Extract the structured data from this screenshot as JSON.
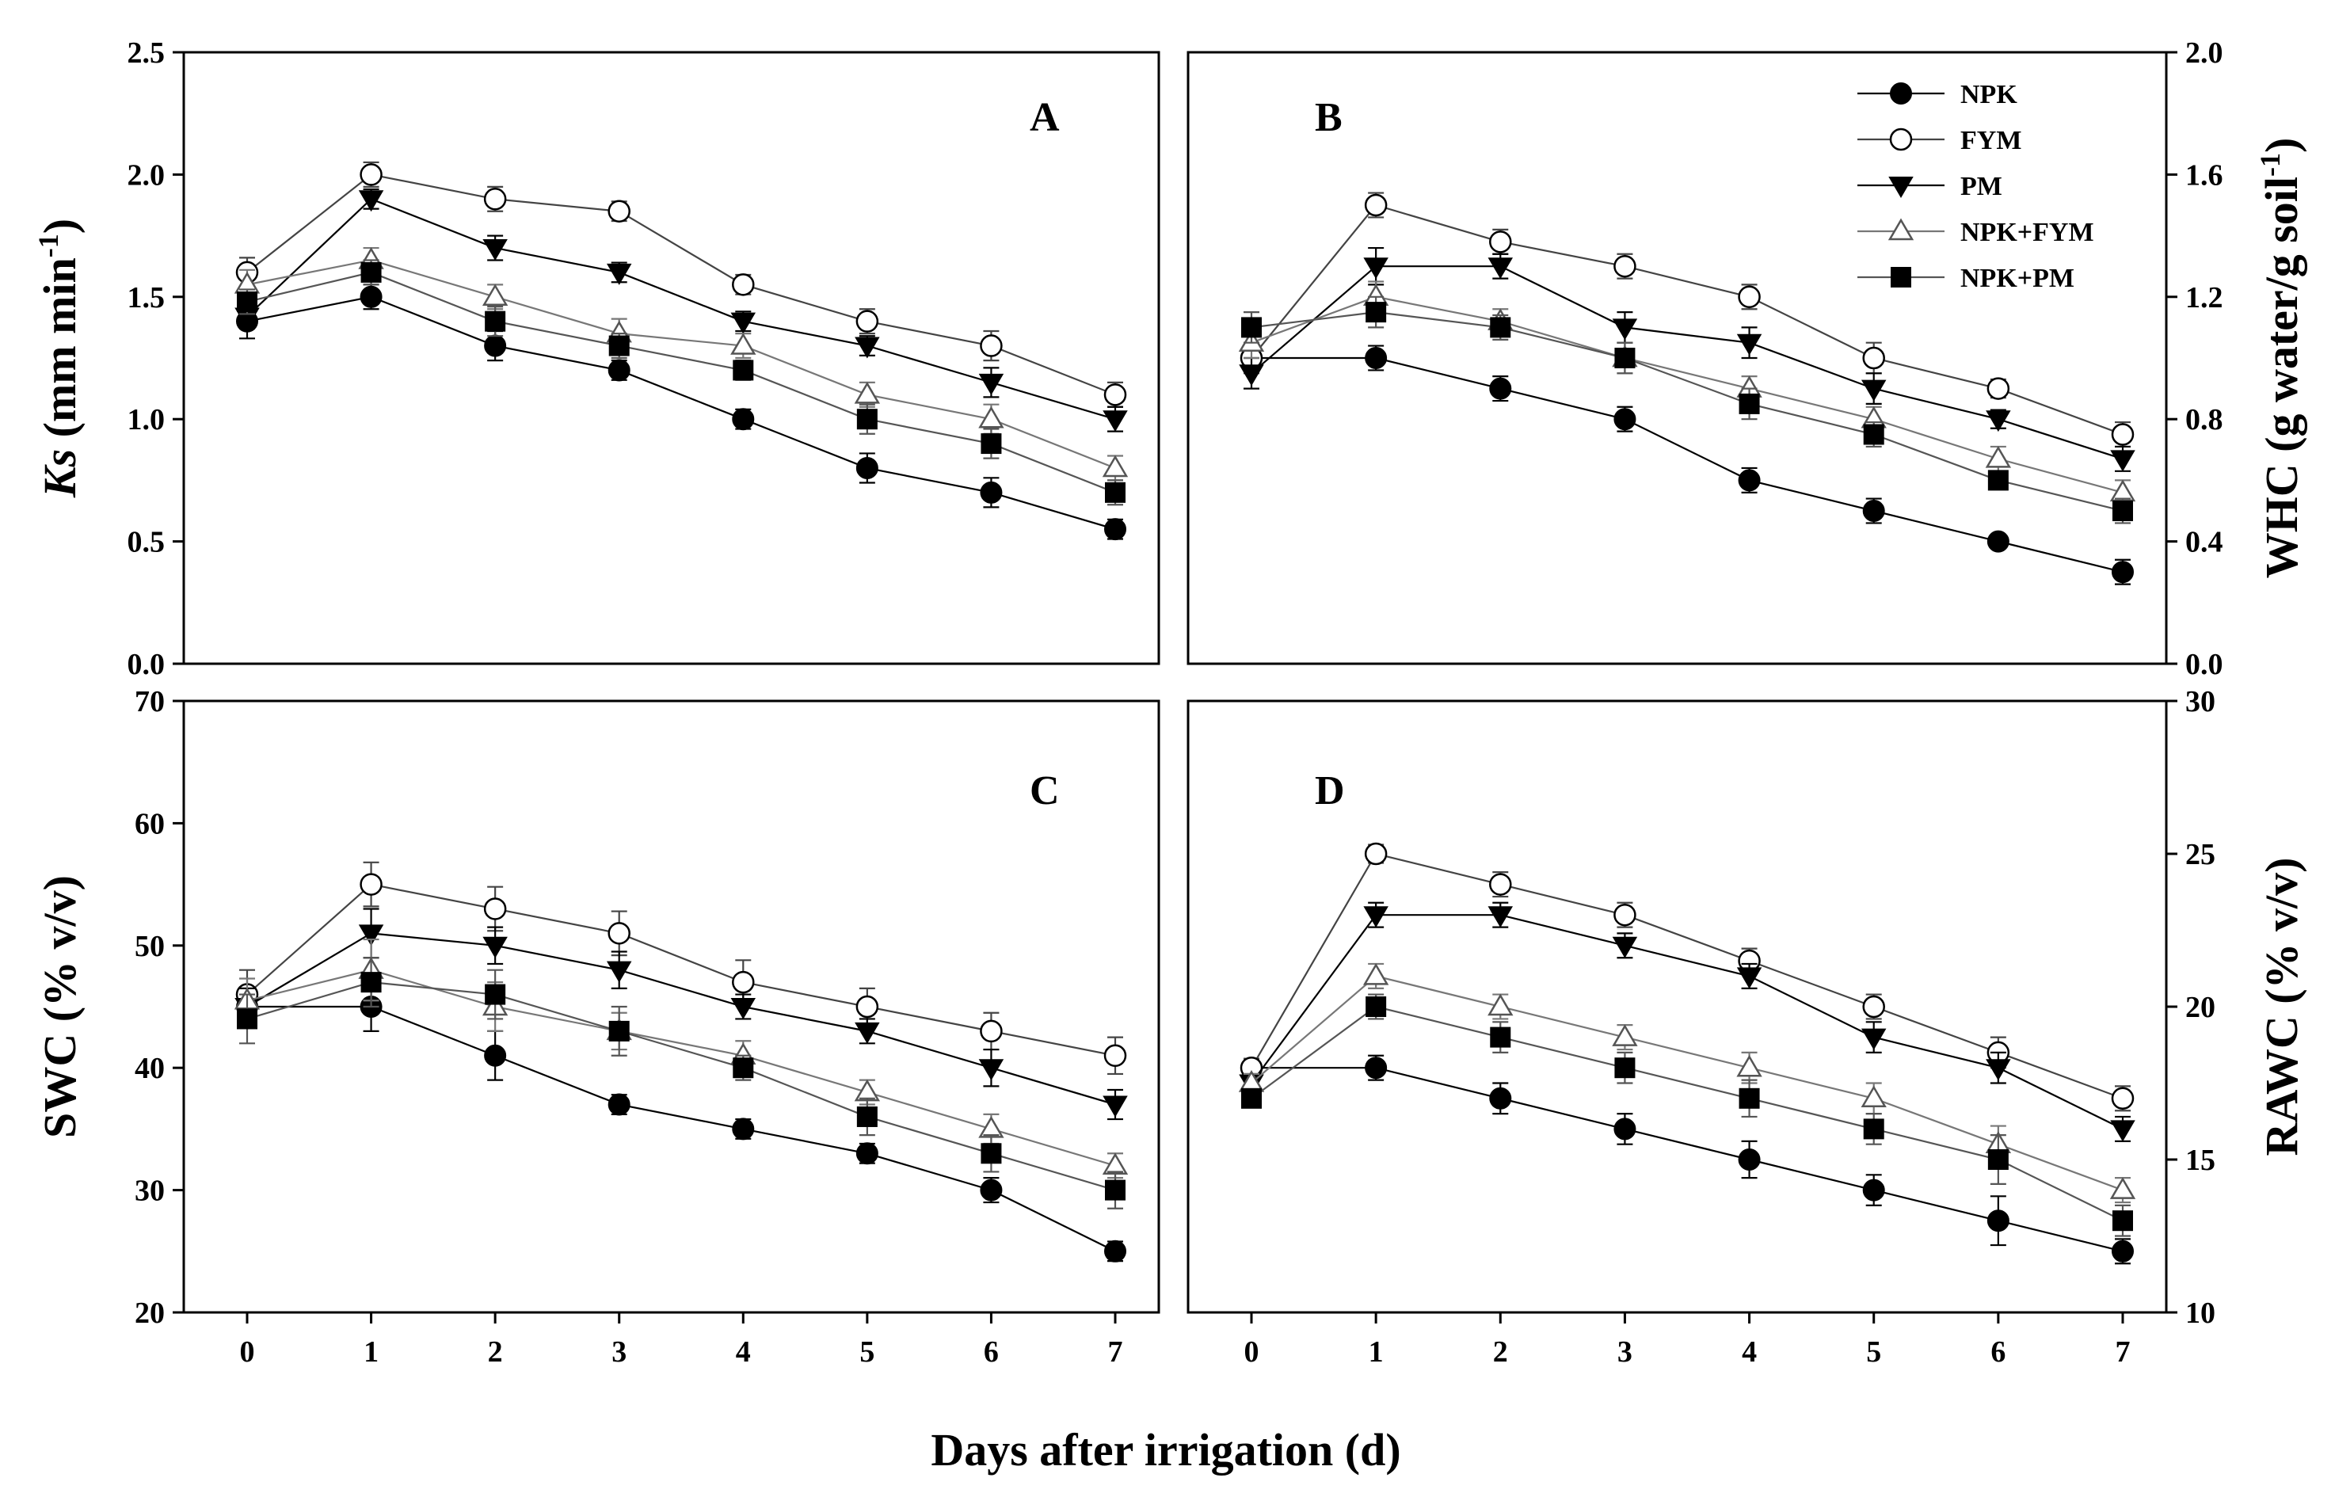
{
  "chart_data": {
    "type": "line",
    "xlabel": "Days after irrigation (d)",
    "x": [
      0,
      1,
      2,
      3,
      4,
      5,
      6,
      7
    ],
    "legend": [
      {
        "name": "NPK",
        "marker": "circle-filled"
      },
      {
        "name": "FYM",
        "marker": "circle-open"
      },
      {
        "name": "PM",
        "marker": "triangle-down-filled"
      },
      {
        "name": "NPK+FYM",
        "marker": "triangle-up-open"
      },
      {
        "name": "NPK+PM",
        "marker": "square-filled"
      }
    ],
    "colors": {
      "NPK": "#000000",
      "FYM": "#444444",
      "PM": "#000000",
      "NPK+FYM": "#777777",
      "NPK+PM": "#555555"
    },
    "panels": [
      {
        "id": "A",
        "letter": "A",
        "ylabel": "Ks (mm min-1)",
        "ylabel_main": "Ks",
        "ylabel_unit": " (mm min",
        "ylabel_sup": "-1",
        "ylabel_close": ")",
        "ylim": [
          0,
          2.5
        ],
        "yticks": [
          "0.0",
          "0.5",
          "1.0",
          "1.5",
          "2.0",
          "2.5"
        ],
        "series": [
          {
            "name": "NPK",
            "values": [
              1.4,
              1.5,
              1.3,
              1.2,
              1.0,
              0.8,
              0.7,
              0.55
            ],
            "errors": [
              0.07,
              0.05,
              0.06,
              0.04,
              0.04,
              0.06,
              0.06,
              0.04
            ]
          },
          {
            "name": "FYM",
            "values": [
              1.6,
              2.0,
              1.9,
              1.85,
              1.55,
              1.4,
              1.3,
              1.1
            ],
            "errors": [
              0.06,
              0.05,
              0.05,
              0.04,
              0.04,
              0.05,
              0.06,
              0.05
            ]
          },
          {
            "name": "PM",
            "values": [
              1.42,
              1.9,
              1.7,
              1.6,
              1.4,
              1.3,
              1.15,
              1.0
            ],
            "errors": [
              0.05,
              0.04,
              0.05,
              0.04,
              0.04,
              0.04,
              0.06,
              0.05
            ]
          },
          {
            "name": "NPK+FYM",
            "values": [
              1.55,
              1.65,
              1.5,
              1.35,
              1.3,
              1.1,
              1.0,
              0.8
            ],
            "errors": [
              0.06,
              0.05,
              0.05,
              0.06,
              0.05,
              0.05,
              0.06,
              0.05
            ]
          },
          {
            "name": "NPK+PM",
            "values": [
              1.48,
              1.6,
              1.4,
              1.3,
              1.2,
              1.0,
              0.9,
              0.7
            ],
            "errors": [
              0.05,
              0.05,
              0.06,
              0.05,
              0.04,
              0.06,
              0.06,
              0.05
            ]
          }
        ]
      },
      {
        "id": "B",
        "letter": "B",
        "ylabel": "WHC (g water/g soil-1)",
        "ylabel_main": "WHC (g water/g soil",
        "ylabel_sup": "-1",
        "ylabel_close": ")",
        "ylim": [
          0,
          2.0
        ],
        "yticks": [
          "0.0",
          "0.4",
          "0.8",
          "1.2",
          "1.6",
          "2.0"
        ],
        "series": [
          {
            "name": "NPK",
            "values": [
              1.0,
              1.0,
              0.9,
              0.8,
              0.6,
              0.5,
              0.4,
              0.3
            ],
            "errors": [
              0.04,
              0.04,
              0.04,
              0.04,
              0.04,
              0.04,
              0.02,
              0.04
            ]
          },
          {
            "name": "FYM",
            "values": [
              1.0,
              1.5,
              1.38,
              1.3,
              1.2,
              1.0,
              0.9,
              0.75
            ],
            "errors": [
              0.05,
              0.04,
              0.04,
              0.04,
              0.04,
              0.05,
              0.03,
              0.04
            ]
          },
          {
            "name": "PM",
            "values": [
              0.95,
              1.3,
              1.3,
              1.1,
              1.05,
              0.9,
              0.8,
              0.67
            ],
            "errors": [
              0.05,
              0.06,
              0.04,
              0.05,
              0.05,
              0.05,
              0.03,
              0.04
            ]
          },
          {
            "name": "NPK+FYM",
            "values": [
              1.05,
              1.2,
              1.12,
              1.0,
              0.9,
              0.8,
              0.67,
              0.56
            ],
            "errors": [
              0.05,
              0.05,
              0.04,
              0.05,
              0.04,
              0.04,
              0.04,
              0.04
            ]
          },
          {
            "name": "NPK+PM",
            "values": [
              1.1,
              1.15,
              1.1,
              1.0,
              0.85,
              0.75,
              0.6,
              0.5
            ],
            "errors": [
              0.05,
              0.05,
              0.04,
              0.05,
              0.05,
              0.04,
              0.03,
              0.04
            ]
          }
        ]
      },
      {
        "id": "C",
        "letter": "C",
        "ylabel": "SWC (% v/v)",
        "ylabel_main": "SWC (% v/v)",
        "ylim": [
          20,
          70
        ],
        "yticks": [
          "20",
          "30",
          "40",
          "50",
          "60",
          "70"
        ],
        "series": [
          {
            "name": "NPK",
            "values": [
              45,
              45,
              41,
              37,
              35,
              33,
              30,
              25
            ],
            "errors": [
              1.5,
              2.0,
              2.0,
              0.8,
              0.8,
              0.8,
              1.0,
              0.8
            ]
          },
          {
            "name": "FYM",
            "values": [
              46,
              55,
              53,
              51,
              47,
              45,
              43,
              41
            ],
            "errors": [
              2.0,
              1.8,
              1.8,
              1.8,
              1.8,
              1.5,
              1.5,
              1.5
            ]
          },
          {
            "name": "PM",
            "values": [
              45,
              51,
              50,
              48,
              45,
              43,
              40,
              37
            ],
            "errors": [
              1.5,
              2.0,
              1.5,
              1.5,
              1.0,
              1.0,
              1.5,
              1.2
            ]
          },
          {
            "name": "NPK+FYM",
            "values": [
              45.5,
              48,
              45,
              43,
              41,
              38,
              35,
              32
            ],
            "errors": [
              1.8,
              2.5,
              2.0,
              1.5,
              1.2,
              1.0,
              1.2,
              1.0
            ]
          },
          {
            "name": "NPK+PM",
            "values": [
              44,
              47,
              46,
              43,
              40,
              36,
              33,
              30
            ],
            "errors": [
              2.0,
              2.0,
              2.0,
              2.0,
              1.0,
              1.5,
              1.5,
              1.5
            ]
          }
        ]
      },
      {
        "id": "D",
        "letter": "D",
        "ylabel": "RAWC (% v/v)",
        "ylabel_main": "RAWC (% v/v)",
        "ylim": [
          10,
          30
        ],
        "yticks": [
          "10",
          "15",
          "20",
          "25",
          "30"
        ],
        "series": [
          {
            "name": "NPK",
            "values": [
              18,
              18,
              17,
              16,
              15,
              14,
              13,
              12
            ],
            "errors": [
              0.3,
              0.4,
              0.5,
              0.5,
              0.6,
              0.5,
              0.8,
              0.4
            ]
          },
          {
            "name": "FYM",
            "values": [
              18,
              25,
              24,
              23,
              21.5,
              20,
              18.5,
              17
            ],
            "errors": [
              0.3,
              0.3,
              0.4,
              0.4,
              0.4,
              0.4,
              0.5,
              0.4
            ]
          },
          {
            "name": "PM",
            "values": [
              17.5,
              23,
              23,
              22,
              21,
              19,
              18,
              16
            ],
            "errors": [
              0.3,
              0.4,
              0.4,
              0.4,
              0.4,
              0.5,
              0.5,
              0.4
            ]
          },
          {
            "name": "NPK+FYM",
            "values": [
              17.5,
              21,
              20,
              19,
              18,
              17,
              15.5,
              14
            ],
            "errors": [
              0.3,
              0.4,
              0.4,
              0.4,
              0.5,
              0.5,
              0.6,
              0.4
            ]
          },
          {
            "name": "NPK+PM",
            "values": [
              17,
              20,
              19,
              18,
              17,
              16,
              15,
              13
            ],
            "errors": [
              0.3,
              0.4,
              0.5,
              0.5,
              0.6,
              0.5,
              0.8,
              0.5
            ]
          }
        ]
      }
    ]
  }
}
